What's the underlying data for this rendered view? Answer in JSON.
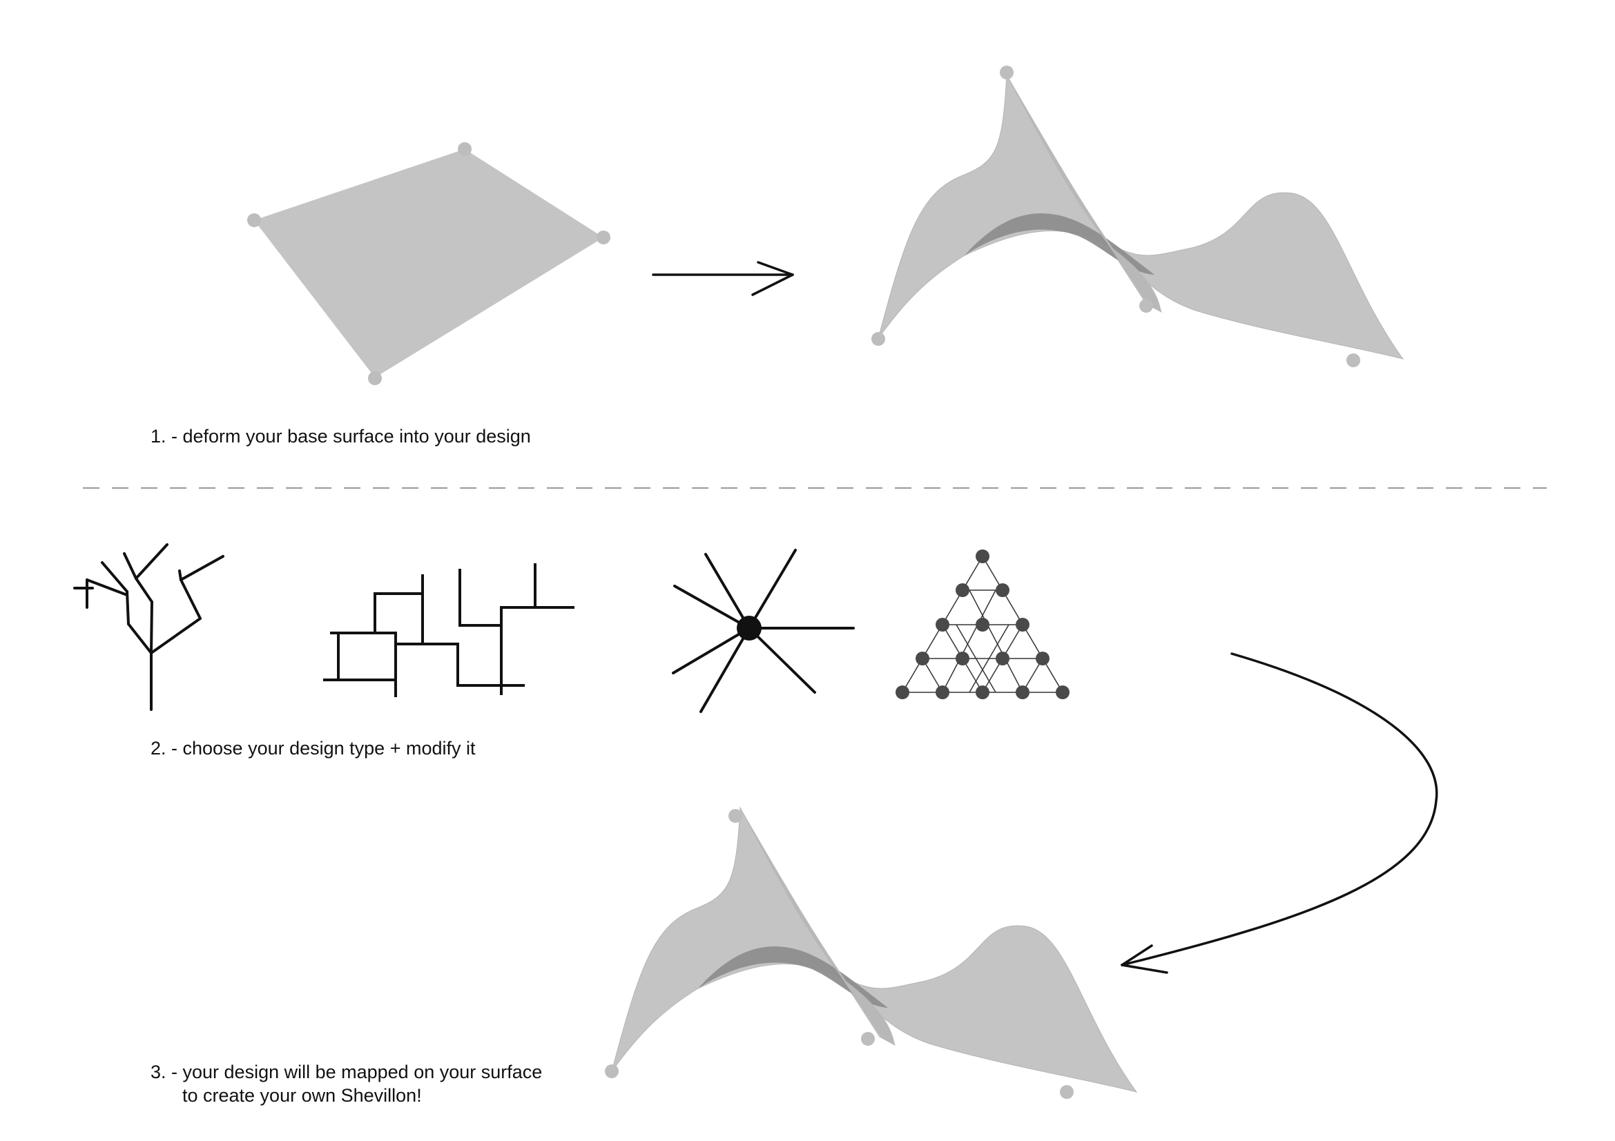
{
  "steps": [
    {
      "caption": "1. - deform your base surface into your design"
    },
    {
      "caption": "2. - choose your design type + modify it"
    },
    {
      "caption": "3. - your design will be mapped on your surface",
      "caption_line2": "to create your own Shevillon!"
    }
  ],
  "colors": {
    "surface": "#c4c4c4",
    "surface_dark": "#8e8e8e",
    "control_point": "#bdbdbd",
    "line": "#111111",
    "node": "#4a4a4a",
    "divider": "#9a9a9a"
  },
  "design_types": [
    "branching-tree",
    "orthogonal-grid",
    "radial-star",
    "triangular-mesh"
  ]
}
